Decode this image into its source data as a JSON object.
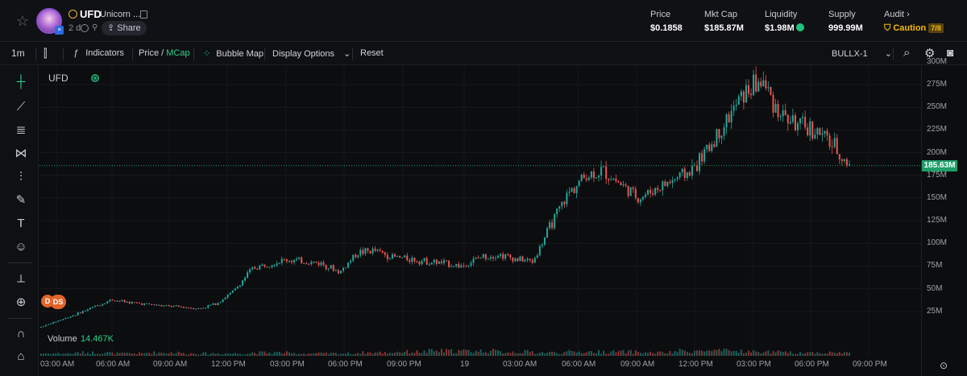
{
  "header": {
    "token_symbol": "UFD",
    "token_name": "Unicorn ...",
    "age": "2 d",
    "share_label": "Share",
    "stats": [
      {
        "label": "Price",
        "value": "$0.1858"
      },
      {
        "label": "Mkt Cap",
        "value": "$185.87M"
      },
      {
        "label": "Liquidity",
        "value": "$1.98M"
      },
      {
        "label": "Supply",
        "value": "999.99M"
      }
    ],
    "audit": {
      "label": "Audit",
      "status": "Caution",
      "score": "7/8"
    }
  },
  "toolbar": {
    "interval": "1m",
    "indicators": "Indicators",
    "price": "Price",
    "slash": "/",
    "mcap": "MCap",
    "bubble_map": "Bubble Map",
    "display_options": "Display Options",
    "reset": "Reset",
    "chart_source": "BULLX-1"
  },
  "chart_legend": {
    "symbol": "UFD"
  },
  "volume": {
    "label": "Volume",
    "value": "14.467K"
  },
  "badges": {
    "d": "D",
    "ds": "DS"
  },
  "colors": {
    "up": "#26a69a",
    "down": "#ef5350",
    "accent": "#1f9e6a",
    "caution": "#f0b90b"
  },
  "chart_data": {
    "type": "candlestick",
    "y_unit": "market cap (USD)",
    "ylim": [
      0,
      300000000
    ],
    "y_ticks": [
      "300M",
      "275M",
      "250M",
      "225M",
      "200M",
      "175M",
      "150M",
      "125M",
      "100M",
      "75M",
      "50M",
      "25M"
    ],
    "x_ticks": [
      "03:00 AM",
      "06:00 AM",
      "09:00 AM",
      "12:00 PM",
      "03:00 PM",
      "06:00 PM",
      "09:00 PM",
      "19",
      "03:00 AM",
      "06:00 AM",
      "09:00 AM",
      "12:00 PM",
      "03:00 PM",
      "06:00 PM",
      "09:00 PM"
    ],
    "current_value_label": "185.63M",
    "current_value": 185630000,
    "series_close_approx": [
      [
        0,
        8
      ],
      [
        0.5,
        15
      ],
      [
        1,
        22
      ],
      [
        1.5,
        30
      ],
      [
        2,
        38
      ],
      [
        2.5,
        35
      ],
      [
        3,
        33
      ],
      [
        3.5,
        31
      ],
      [
        4,
        30
      ],
      [
        4.5,
        28
      ],
      [
        5,
        34
      ],
      [
        5.5,
        48
      ],
      [
        6,
        72
      ],
      [
        6.5,
        78
      ],
      [
        7,
        82
      ],
      [
        7.5,
        80
      ],
      [
        8,
        78
      ],
      [
        8.5,
        68
      ],
      [
        9,
        90
      ],
      [
        9.5,
        92
      ],
      [
        10,
        85
      ],
      [
        10.5,
        83
      ],
      [
        11,
        80
      ],
      [
        11.5,
        78
      ],
      [
        12,
        75
      ],
      [
        12.5,
        85
      ],
      [
        13,
        88
      ],
      [
        13.5,
        83
      ],
      [
        14,
        80
      ],
      [
        14.5,
        120
      ],
      [
        15,
        155
      ],
      [
        15.5,
        175
      ],
      [
        16,
        180
      ],
      [
        16.5,
        165
      ],
      [
        17,
        150
      ],
      [
        17.5,
        160
      ],
      [
        18,
        170
      ],
      [
        18.5,
        180
      ],
      [
        19,
        205
      ],
      [
        19.5,
        235
      ],
      [
        20,
        265
      ],
      [
        20.5,
        280
      ],
      [
        21,
        245
      ],
      [
        21.5,
        230
      ],
      [
        22,
        225
      ],
      [
        22.5,
        210
      ],
      [
        23,
        185
      ]
    ],
    "volume_approx": [
      3,
      4,
      3,
      4,
      3,
      3,
      4,
      3,
      3,
      4,
      5,
      6,
      6,
      5,
      4,
      5,
      5,
      4,
      6,
      6,
      5,
      4,
      4,
      4,
      5,
      5,
      5,
      5,
      6,
      7,
      7,
      6,
      5,
      6,
      5,
      5,
      6,
      7,
      8,
      7,
      8,
      7,
      6,
      6,
      6,
      7,
      7
    ]
  }
}
